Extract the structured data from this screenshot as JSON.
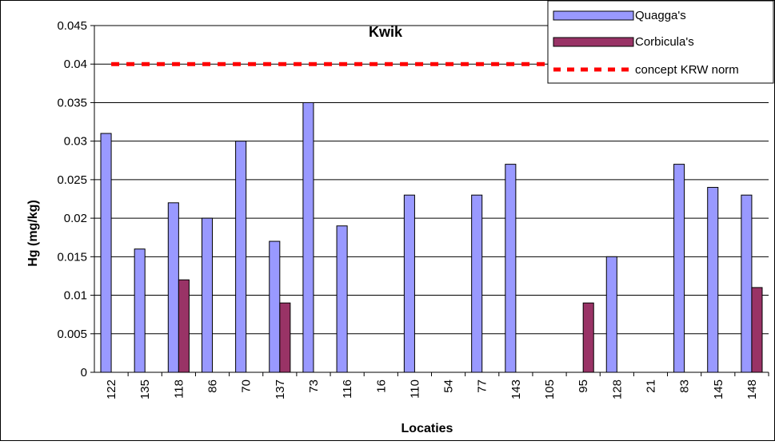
{
  "chart_data": {
    "type": "bar",
    "title": "Kwik",
    "xlabel": "Locaties",
    "ylabel": "Hg (mg/kg)",
    "ylim": [
      0,
      0.045
    ],
    "ytick_step": 0.005,
    "yticks": [
      "0",
      "0.005",
      "0.01",
      "0.015",
      "0.02",
      "0.025",
      "0.03",
      "0.035",
      "0.04",
      "0.045"
    ],
    "grid": true,
    "legend_position": "top-right",
    "categories": [
      "122",
      "135",
      "118",
      "86",
      "70",
      "137",
      "73",
      "116",
      "16",
      "110",
      "54",
      "77",
      "143",
      "105",
      "95",
      "128",
      "21",
      "83",
      "145",
      "148"
    ],
    "series": [
      {
        "name": "Quagga's",
        "color": "#9999ff",
        "values": [
          0.031,
          0.016,
          0.022,
          0.02,
          0.03,
          0.017,
          0.035,
          0.019,
          null,
          0.023,
          null,
          0.023,
          0.027,
          null,
          null,
          0.015,
          null,
          0.027,
          0.024,
          0.023
        ]
      },
      {
        "name": "Corbicula's",
        "color": "#993366",
        "values": [
          null,
          null,
          0.012,
          null,
          null,
          0.009,
          null,
          null,
          null,
          null,
          null,
          null,
          null,
          null,
          0.009,
          null,
          null,
          null,
          null,
          0.011
        ]
      }
    ],
    "reference_line": {
      "name": "concept KRW norm",
      "value": 0.04,
      "color": "#ff0000",
      "style": "dotted"
    }
  }
}
